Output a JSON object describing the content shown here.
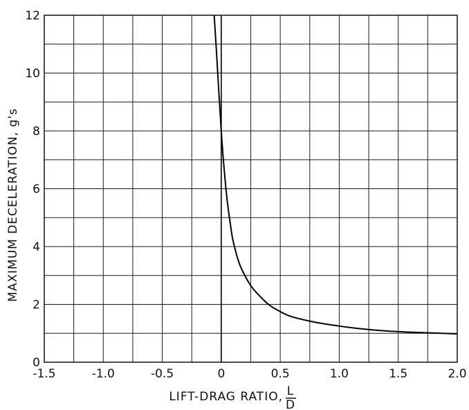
{
  "chart_data": {
    "type": "line",
    "title": "",
    "xlabel": "LIFT-DRAG RATIO,",
    "xlabel_fraction": {
      "numerator": "L",
      "denominator": "D"
    },
    "ylabel": "MAXIMUM  DECELERATION, g's",
    "xlim": [
      -1.5,
      2.0
    ],
    "ylim": [
      0,
      12
    ],
    "x_ticks": [
      -1.5,
      -1.0,
      -0.5,
      0,
      0.5,
      1.0,
      1.5,
      2.0
    ],
    "x_tick_labels": [
      "-1.5",
      "-1.0",
      "-0.5",
      "0",
      "0.5",
      "1.0",
      "1.5",
      "2.0"
    ],
    "y_ticks": [
      0,
      2,
      4,
      6,
      8,
      10,
      12
    ],
    "y_tick_labels": [
      "0",
      "2",
      "4",
      "6",
      "8",
      "10",
      "12"
    ],
    "x_grid_step": 0.25,
    "y_grid_step": 1,
    "grid": true,
    "series": [
      {
        "x": [
          -0.06,
          -0.04,
          -0.02,
          0.0,
          0.02,
          0.05,
          0.08,
          0.1,
          0.15,
          0.2,
          0.25,
          0.3,
          0.4,
          0.5,
          0.6,
          0.8,
          1.0,
          1.2,
          1.4,
          1.6,
          1.8,
          2.0
        ],
        "y": [
          12.0,
          10.7,
          9.3,
          8.0,
          6.9,
          5.6,
          4.7,
          4.2,
          3.45,
          3.0,
          2.65,
          2.4,
          2.0,
          1.75,
          1.57,
          1.38,
          1.25,
          1.15,
          1.08,
          1.04,
          1.01,
          0.98
        ]
      }
    ]
  }
}
